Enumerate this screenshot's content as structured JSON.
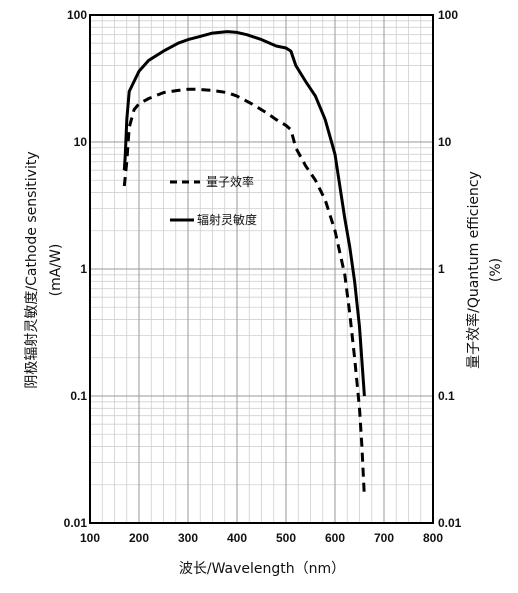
{
  "chart_data": {
    "type": "line",
    "xlabel": "波长/Wavelength（nm）",
    "ylabel_left_line1": "阴极辐射灵敏度/Cathode sensitivity",
    "ylabel_left_line2": "(mA/W)",
    "ylabel_right_line1": "量子效率/Quantum efficiency",
    "ylabel_right_line2": "(%)",
    "xlim": [
      100,
      800
    ],
    "ylim": [
      0.01,
      100
    ],
    "yscale": "log",
    "grid": true,
    "x_ticks": [
      100,
      200,
      300,
      400,
      500,
      600,
      700,
      800
    ],
    "x_tick_labels": [
      "100",
      "200",
      "300",
      "400",
      "500",
      "600",
      "700",
      "800"
    ],
    "y_ticks": [
      0.01,
      0.1,
      1,
      10,
      100
    ],
    "y_tick_labels": [
      "0.01",
      "0.1",
      "1",
      "10",
      "100"
    ],
    "legend_position": "center-left",
    "series": [
      {
        "name": "量子效率",
        "style": "dashed",
        "color": "#000000",
        "points": [
          [
            170,
            4.5
          ],
          [
            175,
            7
          ],
          [
            180,
            13
          ],
          [
            190,
            18
          ],
          [
            200,
            20
          ],
          [
            220,
            22
          ],
          [
            250,
            24.5
          ],
          [
            280,
            25.5
          ],
          [
            300,
            26
          ],
          [
            320,
            26
          ],
          [
            350,
            25.5
          ],
          [
            380,
            24.5
          ],
          [
            400,
            23
          ],
          [
            430,
            20
          ],
          [
            460,
            17
          ],
          [
            480,
            15
          ],
          [
            500,
            13.5
          ],
          [
            510,
            12.5
          ],
          [
            520,
            9
          ],
          [
            540,
            6.5
          ],
          [
            560,
            5
          ],
          [
            580,
            3.5
          ],
          [
            600,
            2
          ],
          [
            620,
            0.9
          ],
          [
            630,
            0.45
          ],
          [
            640,
            0.2
          ],
          [
            650,
            0.08
          ],
          [
            655,
            0.04
          ],
          [
            660,
            0.016
          ]
        ]
      },
      {
        "name": "辐射灵敏度",
        "style": "solid",
        "color": "#000000",
        "points": [
          [
            170,
            6
          ],
          [
            172,
            8
          ],
          [
            175,
            15
          ],
          [
            180,
            25
          ],
          [
            190,
            30
          ],
          [
            200,
            36
          ],
          [
            220,
            44
          ],
          [
            250,
            52
          ],
          [
            280,
            60
          ],
          [
            300,
            64
          ],
          [
            320,
            67
          ],
          [
            350,
            72
          ],
          [
            380,
            74
          ],
          [
            400,
            73
          ],
          [
            420,
            70
          ],
          [
            450,
            64
          ],
          [
            480,
            57
          ],
          [
            500,
            55
          ],
          [
            510,
            52
          ],
          [
            520,
            40
          ],
          [
            540,
            30
          ],
          [
            560,
            23
          ],
          [
            580,
            15
          ],
          [
            600,
            8
          ],
          [
            620,
            2.5
          ],
          [
            630,
            1.5
          ],
          [
            640,
            0.8
          ],
          [
            650,
            0.35
          ],
          [
            660,
            0.1
          ]
        ]
      }
    ]
  }
}
